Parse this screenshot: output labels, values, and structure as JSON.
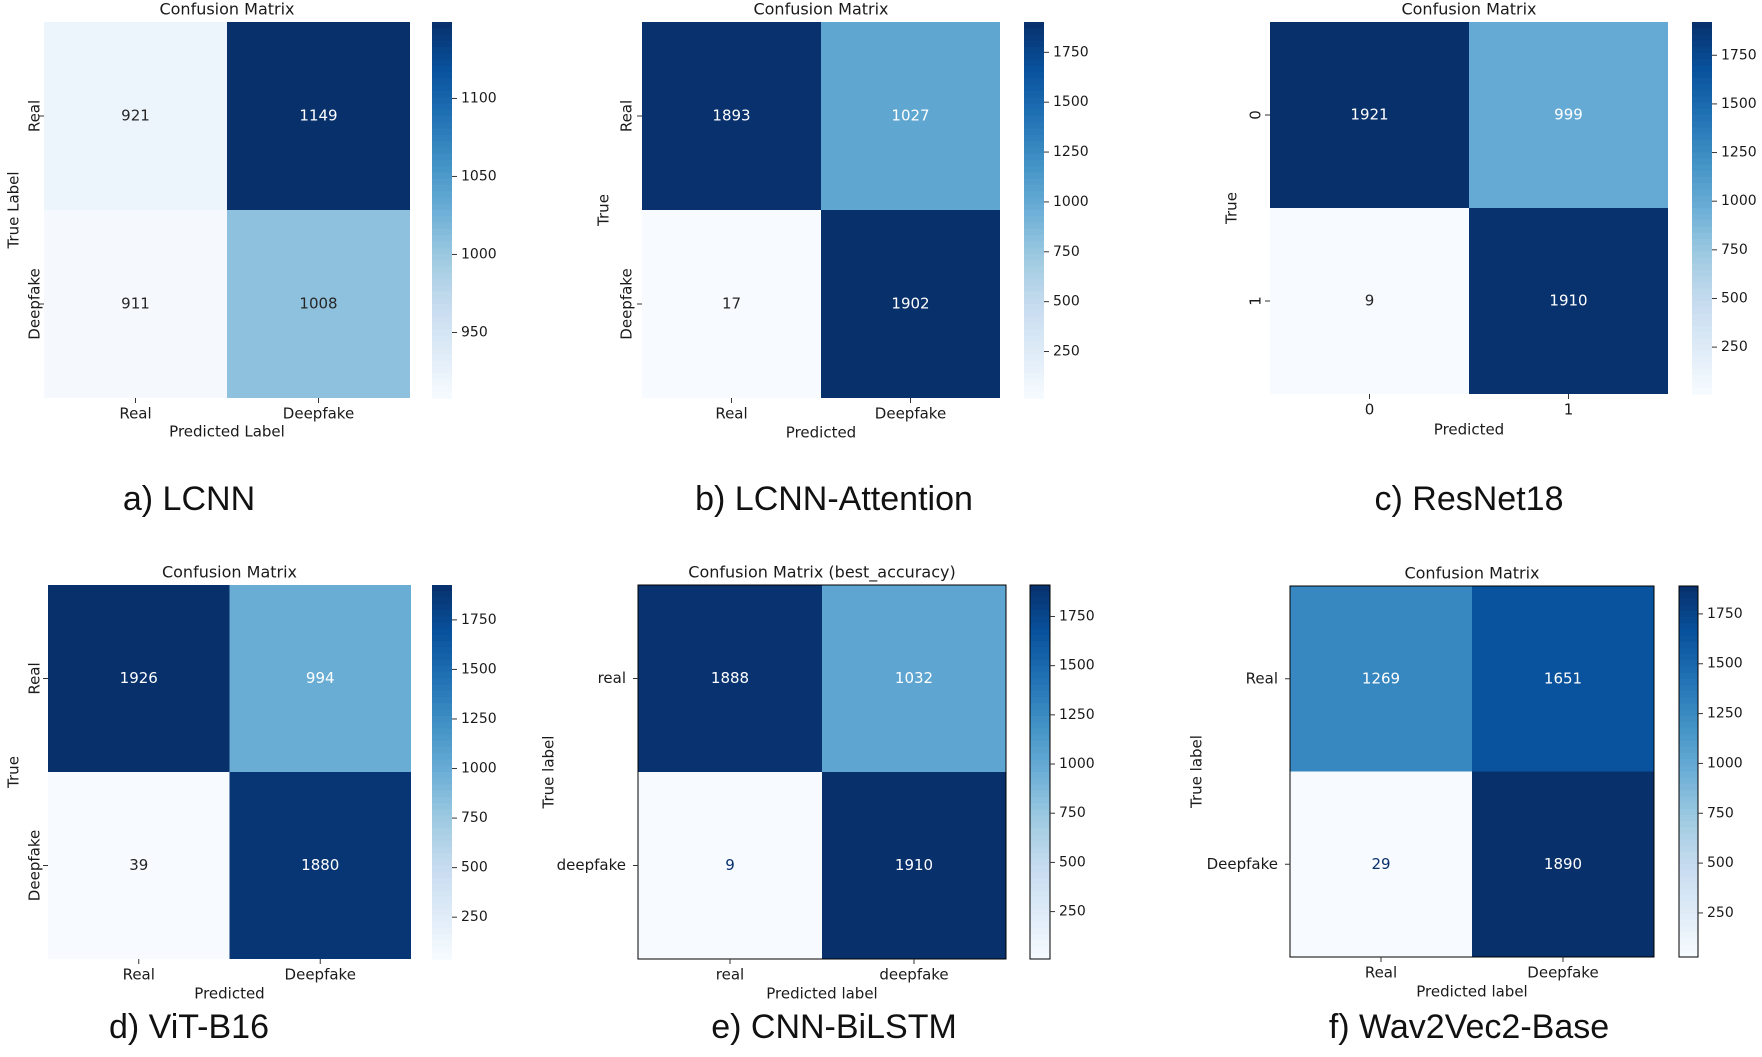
{
  "colormap": {
    "name": "Blues",
    "stops": [
      "#f7fbff",
      "#deebf7",
      "#c6dbef",
      "#9ecae1",
      "#6baed6",
      "#4292c6",
      "#2171b5",
      "#08519c",
      "#08306b"
    ]
  },
  "chart_data": [
    {
      "type": "heatmap",
      "title": "Confusion Matrix",
      "xlabel": "Predicted Label",
      "ylabel": "True Label",
      "x_categories": [
        "Real",
        "Deepfake"
      ],
      "y_categories": [
        "Real",
        "Deepfake"
      ],
      "values": [
        [
          921,
          1149
        ],
        [
          911,
          1008
        ]
      ],
      "colorbar": {
        "range": [
          908,
          1149
        ],
        "ticks": [
          "950",
          "1000",
          "1050",
          "1100"
        ]
      },
      "caption": "a) LCNN"
    },
    {
      "type": "heatmap",
      "title": "Confusion Matrix",
      "xlabel": "Predicted",
      "ylabel": "True",
      "x_categories": [
        "Real",
        "Deepfake"
      ],
      "y_categories": [
        "Real",
        "Deepfake"
      ],
      "values": [
        [
          1893,
          1027
        ],
        [
          17,
          1902
        ]
      ],
      "colorbar": {
        "range": [
          17,
          1902
        ],
        "ticks": [
          "250",
          "500",
          "750",
          "1000",
          "1250",
          "1500",
          "1750"
        ]
      },
      "caption": "b) LCNN-Attention"
    },
    {
      "type": "heatmap",
      "title": "Confusion Matrix",
      "xlabel": "Predicted",
      "ylabel": "True",
      "x_categories": [
        "0",
        "1"
      ],
      "y_categories": [
        "0",
        "1"
      ],
      "values": [
        [
          1921,
          999
        ],
        [
          9,
          1910
        ]
      ],
      "colorbar": {
        "range": [
          9,
          1921
        ],
        "ticks": [
          "250",
          "500",
          "750",
          "1000",
          "1250",
          "1500",
          "1750"
        ]
      },
      "caption": "c) ResNet18"
    },
    {
      "type": "heatmap",
      "title": "Confusion Matrix",
      "xlabel": "Predicted",
      "ylabel": "True",
      "x_categories": [
        "Real",
        "Deepfake"
      ],
      "y_categories": [
        "Real",
        "Deepfake"
      ],
      "values": [
        [
          1926,
          994
        ],
        [
          39,
          1880
        ]
      ],
      "colorbar": {
        "range": [
          39,
          1926
        ],
        "ticks": [
          "250",
          "500",
          "750",
          "1000",
          "1250",
          "1500",
          "1750"
        ]
      },
      "caption": "d) ViT-B16"
    },
    {
      "type": "heatmap",
      "title": "Confusion Matrix (best_accuracy)",
      "xlabel": "Predicted label",
      "ylabel": "True label",
      "x_categories": [
        "real",
        "deepfake"
      ],
      "y_categories": [
        "real",
        "deepfake"
      ],
      "values": [
        [
          1888,
          1032
        ],
        [
          9,
          1910
        ]
      ],
      "colorbar": {
        "range": [
          9,
          1910
        ],
        "ticks": [
          "250",
          "500",
          "750",
          "1000",
          "1250",
          "1500",
          "1750"
        ]
      },
      "caption": "e) CNN-BiLSTM"
    },
    {
      "type": "heatmap",
      "title": "Confusion Matrix",
      "xlabel": "Predicted label",
      "ylabel": "True label",
      "x_categories": [
        "Real",
        "Deepfake"
      ],
      "y_categories": [
        "Real",
        "Deepfake"
      ],
      "values": [
        [
          1269,
          1651
        ],
        [
          29,
          1890
        ]
      ],
      "colorbar": {
        "range": [
          29,
          1890
        ],
        "ticks": [
          "250",
          "500",
          "750",
          "1000",
          "1250",
          "1500",
          "1750"
        ]
      },
      "caption": "f) Wav2Vec2-Base"
    }
  ]
}
